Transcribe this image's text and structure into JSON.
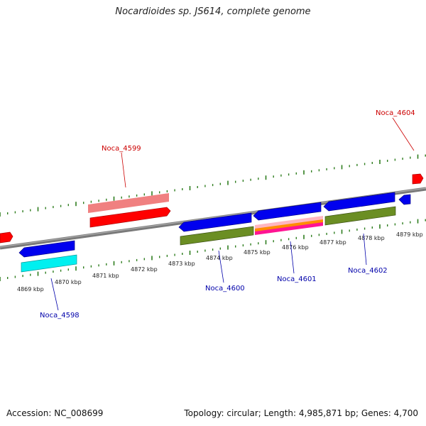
{
  "title": "Nocardioides sp. JS614, complete genome",
  "footer": {
    "accession": "Accession: NC_008699",
    "summary": "Topology: circular; Length: 4,985,871 bp; Genes: 4,700"
  },
  "colors": {
    "backbone": "#8a8a8a",
    "tick": "#2e7d1e",
    "forward_label": "#cc0000",
    "reverse_label": "#0000aa",
    "cds_forward": "#ff0000",
    "cds_forward_light": "#f08080",
    "cds_reverse": "#0000ee",
    "cds_reverse_cyan": "#00f0f0",
    "cds_reverse_olive": "#6b8e23",
    "cds_reverse_multi": [
      "#ff1493",
      "#ff8c00",
      "#ffb6c1"
    ]
  },
  "scale_labels": [
    "4869 kbp",
    "4870 kbp",
    "4871 kbp",
    "4872 kbp",
    "4873 kbp",
    "4874 kbp",
    "4875 kbp",
    "4876 kbp",
    "4877 kbp",
    "4878 kbp",
    "4879 kbp"
  ],
  "gene_labels": {
    "g4599": "Noca_4599",
    "g4604": "Noca_4604",
    "g4598": "Noca_4598",
    "g4600": "Noca_4600",
    "g4601": "Noca_4601",
    "g4602": "Noca_4602"
  }
}
